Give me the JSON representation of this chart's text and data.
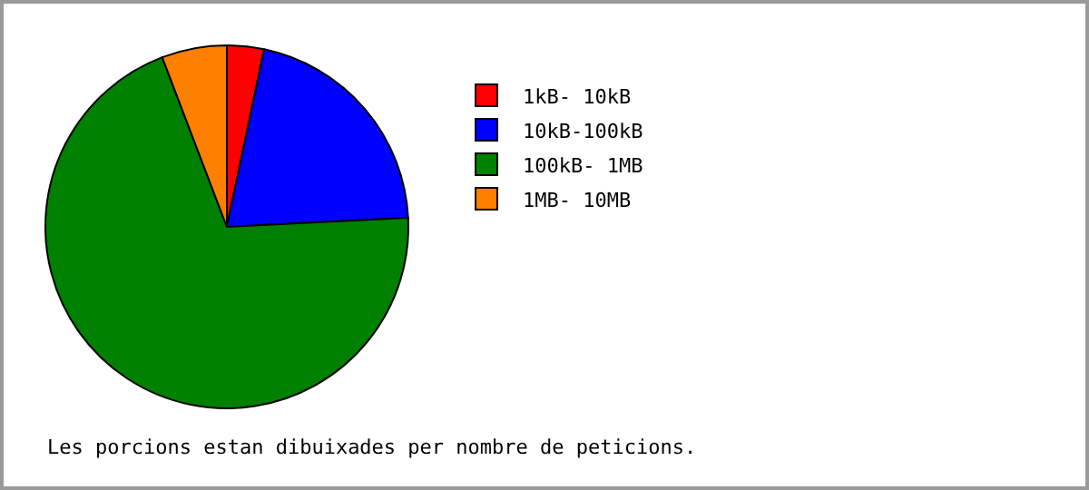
{
  "chart_data": {
    "type": "pie",
    "categories": [
      "1kB- 10kB",
      "10kB-100kB",
      "100kB- 1MB",
      "1MB- 10MB"
    ],
    "values": [
      3.3,
      20.9,
      70.0,
      5.8
    ],
    "colors": [
      "#ff0000",
      "#0000ff",
      "#008000",
      "#ff8000"
    ],
    "legend": "right",
    "annotations": [
      "Les porcions estan dibuixades per nombre de peticions."
    ]
  }
}
